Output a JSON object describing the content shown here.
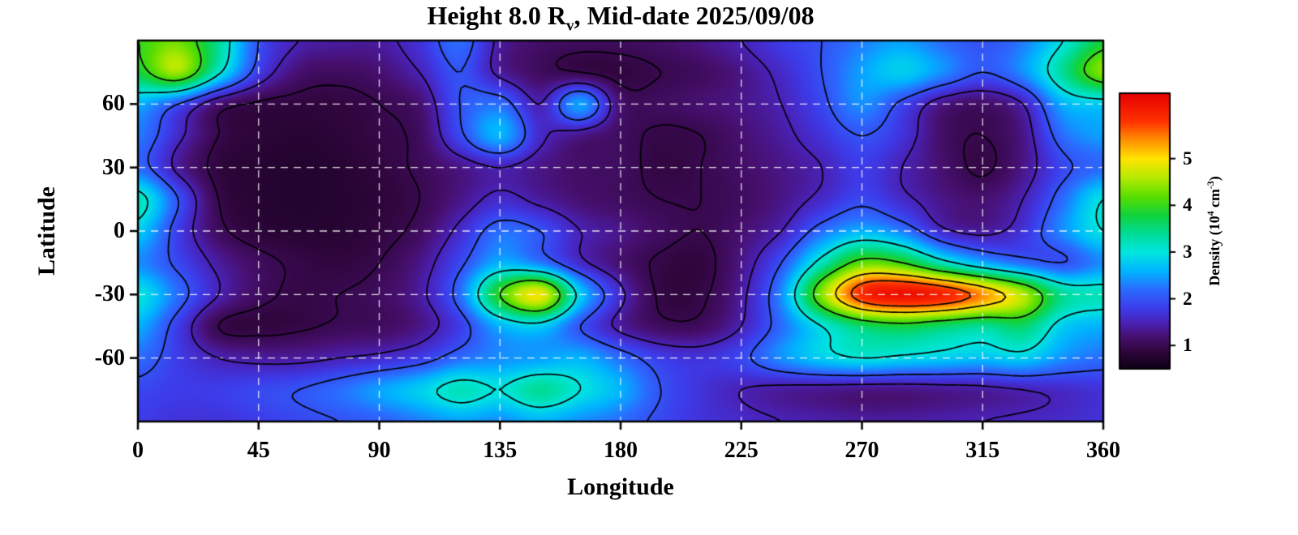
{
  "title": {
    "prefix": "Height 8.0 R",
    "sub": "v",
    "suffix": ", Mid-date 2025/09/08"
  },
  "axes": {
    "xlabel": "Longitude",
    "ylabel": "Latitude"
  },
  "colorbar_label": {
    "p1": "Density (10",
    "sup1": "4",
    "p2": " cm",
    "sup2": "-3",
    "p3": ")"
  },
  "chart_data": {
    "type": "heatmap",
    "title": "Height 8.0 Rv, Mid-date 2025/09/08",
    "xlabel": "Longitude",
    "ylabel": "Latitude",
    "xlim": [
      0,
      360
    ],
    "ylim": [
      -90,
      90
    ],
    "xticks": [
      0,
      45,
      90,
      135,
      180,
      225,
      270,
      315,
      360
    ],
    "yticks": [
      60,
      30,
      0,
      -30,
      -60
    ],
    "grid": true,
    "colorbar_label": "Density (10^4 cm^-3)",
    "colorbar_ticks": [
      1,
      2,
      3,
      4,
      5
    ],
    "value_range": [
      0.5,
      6.4
    ],
    "contour_levels": [
      1,
      1.5,
      2,
      3,
      4,
      5,
      5.6
    ],
    "lon": [
      0,
      15,
      30,
      45,
      60,
      75,
      90,
      105,
      120,
      135,
      150,
      165,
      180,
      195,
      210,
      225,
      240,
      255,
      270,
      285,
      300,
      315,
      330,
      345,
      360
    ],
    "lat": [
      90,
      75,
      60,
      45,
      30,
      15,
      0,
      -15,
      -30,
      -45,
      -60,
      -75,
      -90
    ],
    "density": [
      [
        4.0,
        4.3,
        3.4,
        2.0,
        1.5,
        1.4,
        1.4,
        1.7,
        2.2,
        1.4,
        1.15,
        1.1,
        1.1,
        1.15,
        1.3,
        1.5,
        1.8,
        2.0,
        2.3,
        2.5,
        2.2,
        2.0,
        2.3,
        3.0,
        3.8
      ],
      [
        3.8,
        4.5,
        3.1,
        1.8,
        1.2,
        1.1,
        1.2,
        1.5,
        2.0,
        1.4,
        1.1,
        1.0,
        0.9,
        1.0,
        1.1,
        1.3,
        1.6,
        2.0,
        2.5,
        2.8,
        2.4,
        2.0,
        2.4,
        3.4,
        4.4
      ],
      [
        2.6,
        2.0,
        1.2,
        0.95,
        0.9,
        0.9,
        1.0,
        1.2,
        2.0,
        2.2,
        1.5,
        2.5,
        1.2,
        1.1,
        1.2,
        1.3,
        1.5,
        1.9,
        2.4,
        1.9,
        1.3,
        1.15,
        1.5,
        2.6,
        2.8
      ],
      [
        2.3,
        1.6,
        1.0,
        0.85,
        0.8,
        0.85,
        0.95,
        1.1,
        1.9,
        2.6,
        1.6,
        1.3,
        1.1,
        0.95,
        1.0,
        1.2,
        1.4,
        1.7,
        2.0,
        1.7,
        1.15,
        1.0,
        1.3,
        2.2,
        2.5
      ],
      [
        2.2,
        1.4,
        0.9,
        0.8,
        0.75,
        0.8,
        0.9,
        1.05,
        1.3,
        1.5,
        1.3,
        1.15,
        1.1,
        0.92,
        1.0,
        1.15,
        1.3,
        1.5,
        1.8,
        1.5,
        1.2,
        0.95,
        1.3,
        1.9,
        2.2
      ],
      [
        3.2,
        2.0,
        1.0,
        0.8,
        0.75,
        0.78,
        0.85,
        1.0,
        1.3,
        1.6,
        1.4,
        1.2,
        1.1,
        1.0,
        1.0,
        1.1,
        1.3,
        1.6,
        1.9,
        1.6,
        1.3,
        1.2,
        1.5,
        2.2,
        3.0
      ],
      [
        2.8,
        1.8,
        1.1,
        0.85,
        0.8,
        0.8,
        0.9,
        1.1,
        1.6,
        2.2,
        2.0,
        1.5,
        1.3,
        1.1,
        1.0,
        1.2,
        1.5,
        2.2,
        2.6,
        2.3,
        1.6,
        1.4,
        1.7,
        2.4,
        3.0
      ],
      [
        2.4,
        1.9,
        1.4,
        1.1,
        0.95,
        0.9,
        1.0,
        1.3,
        1.9,
        2.6,
        2.3,
        1.6,
        1.2,
        0.95,
        0.9,
        1.3,
        2.0,
        3.2,
        4.2,
        4.0,
        3.2,
        2.6,
        2.2,
        2.0,
        2.4
      ],
      [
        3.0,
        2.2,
        1.5,
        1.1,
        0.95,
        1.0,
        1.1,
        1.4,
        2.2,
        4.0,
        4.9,
        2.8,
        1.6,
        0.95,
        0.95,
        1.4,
        2.4,
        4.4,
        5.9,
        6.2,
        6.0,
        5.4,
        4.6,
        3.4,
        3.2
      ],
      [
        2.6,
        1.8,
        1.0,
        0.9,
        0.95,
        1.05,
        1.1,
        1.3,
        1.8,
        2.6,
        2.8,
        2.0,
        1.4,
        1.1,
        1.1,
        1.5,
        2.2,
        3.0,
        3.6,
        3.8,
        3.6,
        3.4,
        3.6,
        2.8,
        2.6
      ],
      [
        2.2,
        1.8,
        1.5,
        1.4,
        1.4,
        1.5,
        1.6,
        1.8,
        2.2,
        2.4,
        2.5,
        2.6,
        2.2,
        1.8,
        1.7,
        1.9,
        2.4,
        2.8,
        3.0,
        2.9,
        2.8,
        2.7,
        2.8,
        2.4,
        2.2
      ],
      [
        1.9,
        1.8,
        1.8,
        1.9,
        2.0,
        2.2,
        2.5,
        2.8,
        3.2,
        3.0,
        3.4,
        3.0,
        2.6,
        2.0,
        1.7,
        1.5,
        1.4,
        1.35,
        1.3,
        1.3,
        1.35,
        1.4,
        1.5,
        1.6,
        1.7
      ],
      [
        1.8,
        1.7,
        1.7,
        1.8,
        1.9,
        2.0,
        2.1,
        2.3,
        2.5,
        2.4,
        2.6,
        2.4,
        2.2,
        1.9,
        1.7,
        1.6,
        1.5,
        1.45,
        1.4,
        1.4,
        1.45,
        1.5,
        1.55,
        1.6,
        1.7
      ]
    ],
    "colormap": [
      [
        0.5,
        "#0b0013"
      ],
      [
        0.9,
        "#31063f"
      ],
      [
        1.2,
        "#471070"
      ],
      [
        1.5,
        "#4a22b8"
      ],
      [
        1.8,
        "#3d3cea"
      ],
      [
        2.2,
        "#2b6bff"
      ],
      [
        2.6,
        "#00b4ff"
      ],
      [
        3.0,
        "#00e6e0"
      ],
      [
        3.4,
        "#00dc96"
      ],
      [
        3.8,
        "#12d23c"
      ],
      [
        4.2,
        "#5ade00"
      ],
      [
        4.6,
        "#b6ea00"
      ],
      [
        5.0,
        "#ffe400"
      ],
      [
        5.4,
        "#ff9000"
      ],
      [
        5.8,
        "#ff3200"
      ],
      [
        6.4,
        "#e60000"
      ]
    ],
    "legend_position": "right-colorbar"
  }
}
